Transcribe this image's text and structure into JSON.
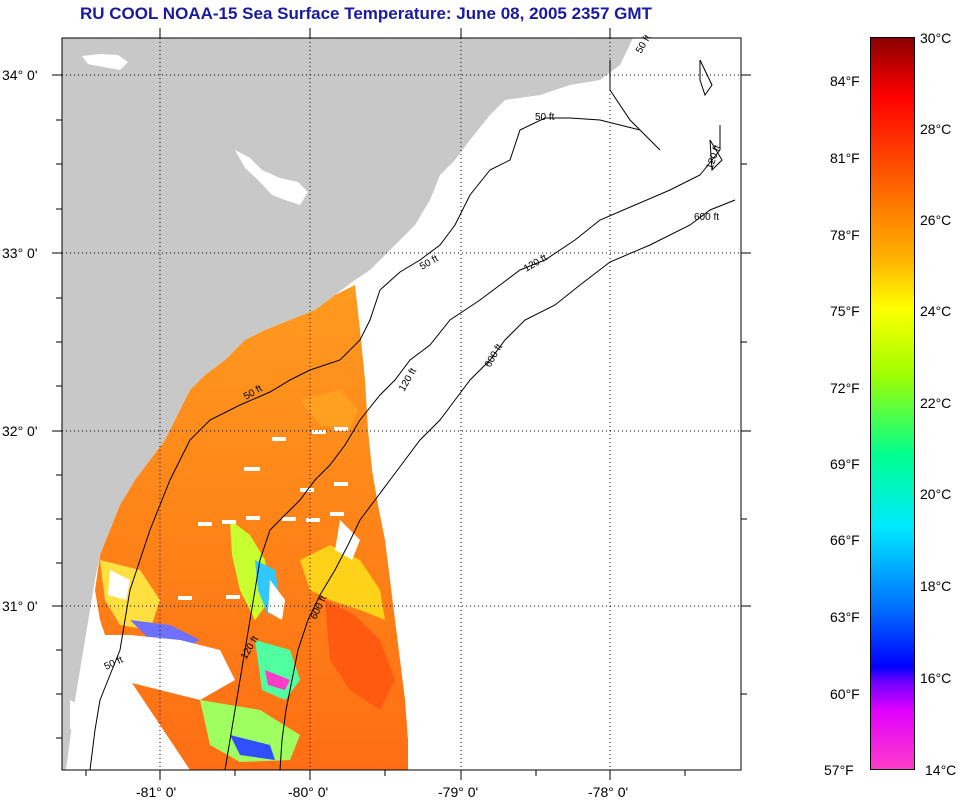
{
  "title": "RU COOL  NOAA-15  Sea Surface Temperature:  June 08, 2005 2357 GMT",
  "lat_labels": [
    "34° 0'",
    "33° 0'",
    "32° 0'",
    "31° 0'"
  ],
  "lon_labels": [
    "-81° 0'",
    "-80° 0'",
    "-79° 0'",
    "-78° 0'"
  ],
  "contour_labels": [
    "50 ft",
    "50 ft",
    "50 ft",
    "50 ft",
    "50 ft",
    "120 ft",
    "120 ft",
    "120 ft",
    "120 ft",
    "600 ft",
    "600 ft",
    "600 ft"
  ],
  "colorbar": {
    "fahrenheit_labels": [
      "84°F",
      "81°F",
      "78°F",
      "75°F",
      "72°F",
      "69°F",
      "66°F",
      "63°F",
      "60°F",
      "57°F"
    ],
    "celsius_labels": [
      "30°C",
      "28°C",
      "26°C",
      "24°C",
      "22°C",
      "20°C",
      "18°C",
      "16°C",
      "14°C"
    ],
    "colors": [
      "#ff3cc8",
      "#6a00ff",
      "#0000ff",
      "#00e8ff",
      "#00ff90",
      "#ffff00",
      "#ff7a00",
      "#ff0000",
      "#8a0000"
    ]
  },
  "colors": {
    "land": "#c8c8c8",
    "title": "#1a1aa0",
    "warm": "#ff8a1e",
    "grid": "#000000"
  }
}
